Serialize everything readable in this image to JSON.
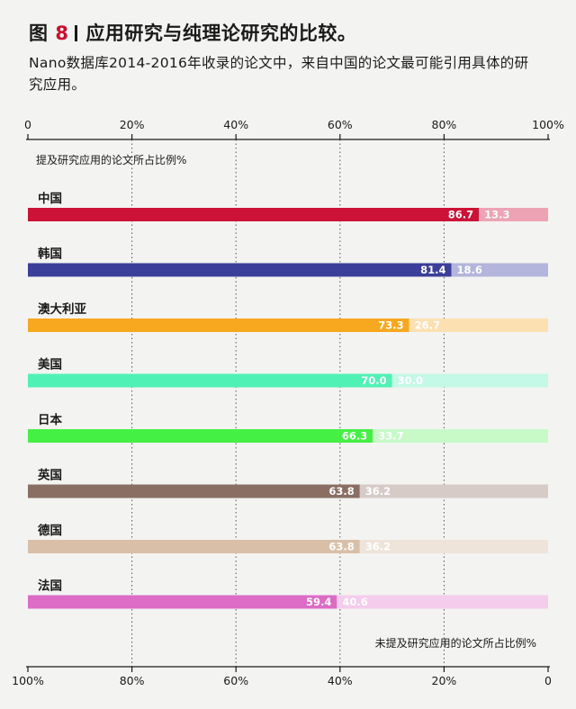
{
  "header": {
    "fig_prefix": "图",
    "fig_number": "8",
    "title": "应用研究与纯理论研究的比较。",
    "subtitle": "Nano数据库2014-2016年收录的论文中，来自中国的论文最可能引用具体的研究应用。"
  },
  "colors": {
    "fig_number": "#c8102e"
  },
  "chart_data": {
    "type": "bar",
    "orientation": "horizontal",
    "stacked": true,
    "xlim": [
      0,
      100
    ],
    "top_axis_ticks": [
      "0",
      "20%",
      "40%",
      "60%",
      "80%",
      "100%"
    ],
    "bottom_axis_ticks": [
      "100%",
      "80%",
      "60%",
      "40%",
      "20%",
      "0"
    ],
    "grid": "dotted-vertical",
    "label_applied": "提及研究应用的论文所占比例%",
    "label_pure": "未提及研究应用的论文所占比例%",
    "categories": [
      "中国",
      "韩国",
      "澳大利亚",
      "美国",
      "日本",
      "英国",
      "德国",
      "法国"
    ],
    "series": [
      {
        "values": [
          86.7,
          81.4,
          73.3,
          70.0,
          66.3,
          63.8,
          63.8,
          59.4
        ],
        "colors": [
          "#cc1236",
          "#3b3f99",
          "#f8a81f",
          "#4ff2b4",
          "#45f045",
          "#8a6e63",
          "#d9bfa8",
          "#dc6cc6"
        ]
      },
      {
        "values": [
          13.3,
          18.6,
          26.7,
          30.0,
          33.7,
          36.2,
          36.2,
          40.6
        ],
        "colors": [
          "#eda3b3",
          "#b3b5dc",
          "#fde0b1",
          "#c3f9e6",
          "#c8fac8",
          "#d6cbc6",
          "#eee4da",
          "#f4ccec"
        ]
      }
    ]
  }
}
